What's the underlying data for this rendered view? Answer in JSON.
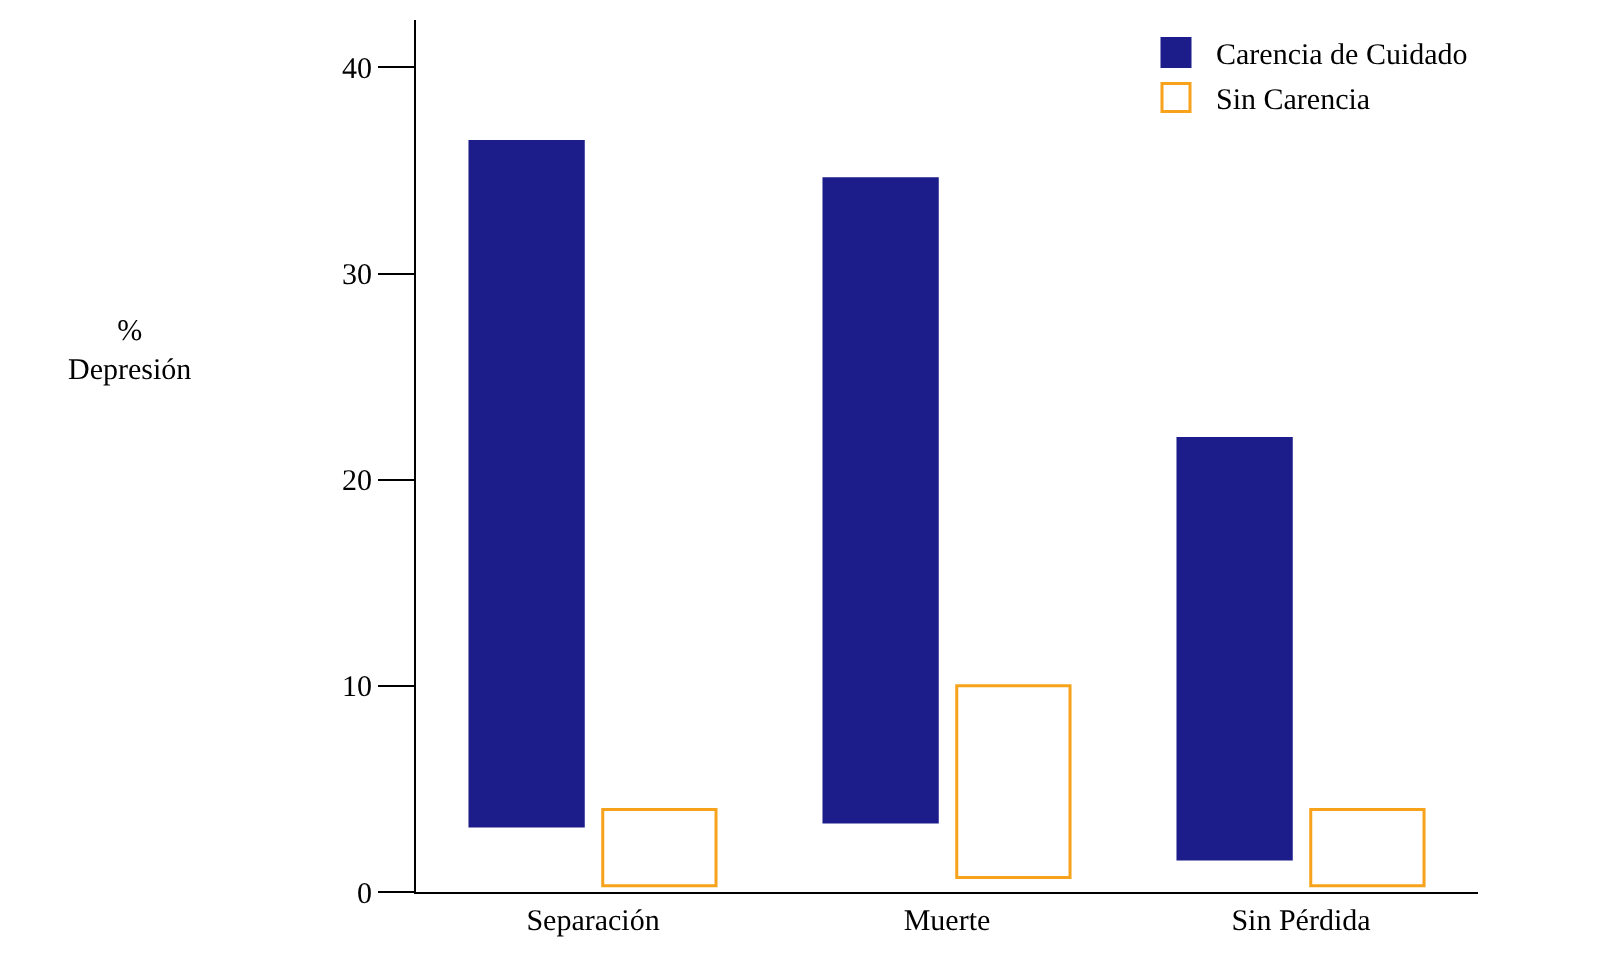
{
  "chart_data": {
    "type": "bar",
    "annotations": [
      "%\nDepresión"
    ],
    "categories": [
      "Separación",
      "Muerte",
      "Sin Pérdida"
    ],
    "series": [
      {
        "name": "Carencia de Cuidado",
        "color": "#1c1c8a",
        "values": [
          33.2,
          31.2,
          20.4
        ],
        "base": [
          3.2,
          3.4,
          1.6
        ]
      },
      {
        "name": "Sin Carencia",
        "color": "#f7a21b",
        "values": [
          3.7,
          9.3,
          3.7
        ],
        "base": [
          0.3,
          0.7,
          0.3
        ]
      }
    ],
    "ylim": [
      0,
      42.3
    ],
    "yticks": [
      0,
      10,
      20,
      30,
      40
    ],
    "legend": "top right"
  }
}
